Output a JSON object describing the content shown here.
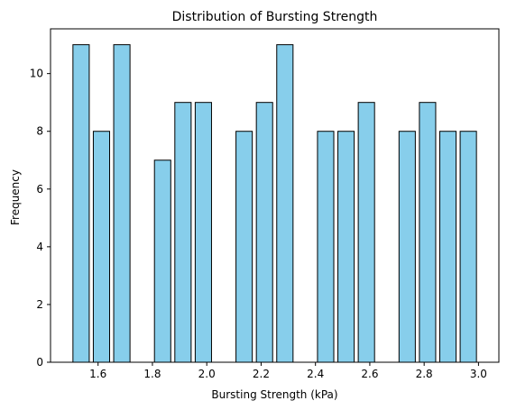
{
  "chart_data": {
    "type": "bar",
    "title": "Distribution of Bursting Strength",
    "xlabel": "Bursting Strength (kPa)",
    "ylabel": "Frequency",
    "bin_edges": [
      1.5,
      1.575,
      1.65,
      1.725,
      1.8,
      1.875,
      1.95,
      2.025,
      2.1,
      2.175,
      2.25,
      2.325,
      2.4,
      2.475,
      2.55,
      2.625,
      2.7,
      2.775,
      2.85,
      2.925,
      3.0
    ],
    "values": [
      11,
      8,
      11,
      0,
      7,
      9,
      9,
      0,
      8,
      9,
      11,
      0,
      8,
      8,
      9,
      0,
      8,
      9,
      8,
      8
    ],
    "xlim": [
      1.425,
      3.075
    ],
    "ylim": [
      0,
      11.55
    ],
    "x_ticks": [
      1.6,
      1.8,
      2.0,
      2.2,
      2.4,
      2.6,
      2.8,
      3.0
    ],
    "x_tick_labels": [
      "1.6",
      "1.8",
      "2.0",
      "2.2",
      "2.4",
      "2.6",
      "2.8",
      "3.0"
    ],
    "y_ticks": [
      0,
      2,
      4,
      6,
      8,
      10
    ],
    "y_tick_labels": [
      "0",
      "2",
      "4",
      "6",
      "8",
      "10"
    ],
    "bar_color": "#87CEEB",
    "edge_color": "#000000",
    "grid": false,
    "legend": "none"
  }
}
